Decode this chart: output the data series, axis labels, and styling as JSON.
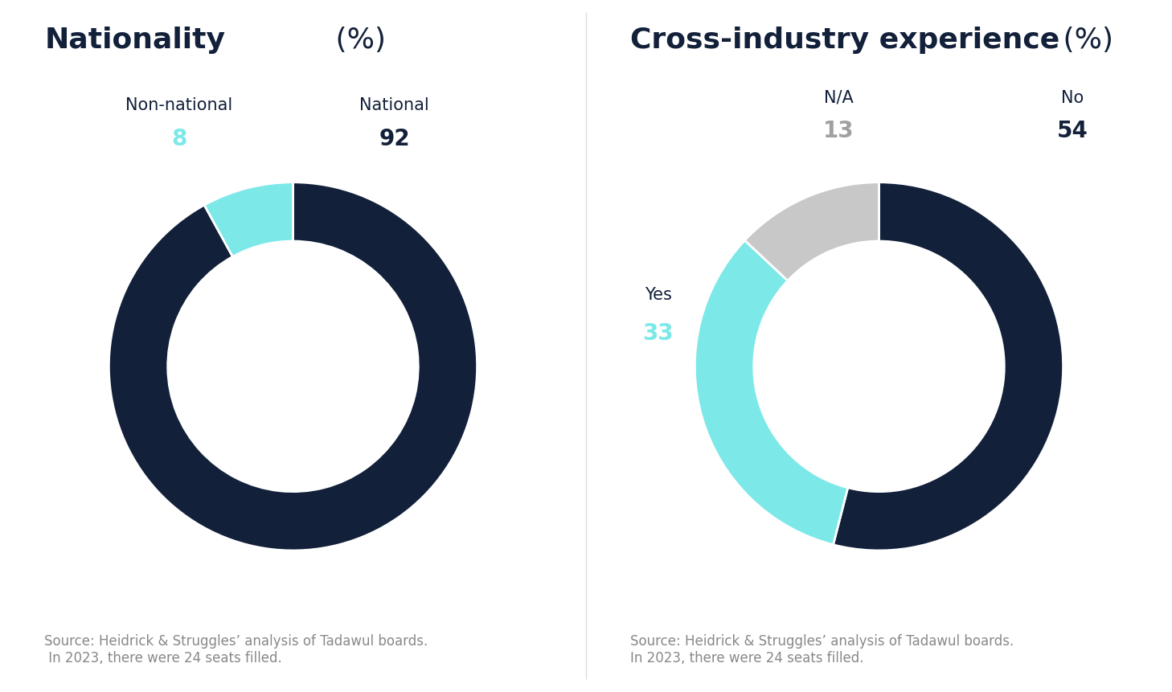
{
  "chart1": {
    "title_bold": "Nationality",
    "title_normal": " (%)",
    "slices": [
      92,
      8
    ],
    "labels": [
      "National",
      "Non-national"
    ],
    "values_display": [
      "92",
      "8"
    ],
    "colors": [
      "#12203a",
      "#7de8e8"
    ],
    "value_colors": [
      "#12203a",
      "#7de8e8"
    ],
    "source": "Source: Heidrick & Struggles’ analysis of Tadawul boards.\n In 2023, there were 24 seats filled."
  },
  "chart2": {
    "title_bold": "Cross-industry experience",
    "title_normal": " (%)",
    "slices": [
      54,
      33,
      13
    ],
    "labels": [
      "No",
      "Yes",
      "N/A"
    ],
    "values_display": [
      "54",
      "33",
      "13"
    ],
    "colors": [
      "#12203a",
      "#7de8e8",
      "#c8c8c8"
    ],
    "value_colors": [
      "#12203a",
      "#7de8e8",
      "#a0a0a0"
    ],
    "source": "Source: Heidrick & Struggles’ analysis of Tadawul boards.\nIn 2023, there were 24 seats filled."
  },
  "bg_color": "#ffffff",
  "title_color": "#12203a",
  "label_color": "#12203a",
  "source_color": "#888888",
  "divider_color": "#dddddd",
  "title_fontsize": 26,
  "label_fontsize": 15,
  "value_fontsize": 20,
  "source_fontsize": 12,
  "donut_width": 0.32
}
